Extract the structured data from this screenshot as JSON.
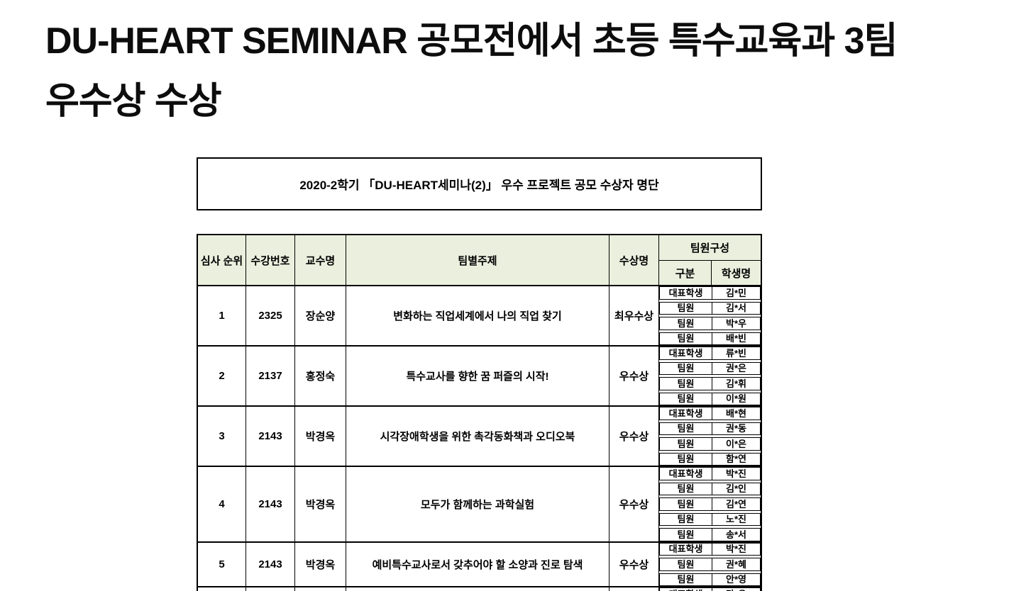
{
  "title": {
    "line1": "DU-HEART SEMINAR 공모전에서 초등 특수교육과 3팀",
    "line2": "우수상 수상"
  },
  "table": {
    "caption": "2020-2학기 「DU-HEART세미나(2)」 우수 프로젝트 공모 수상자 명단",
    "headers": {
      "rank": "심사 순위",
      "course_no": "수강번호",
      "professor": "교수명",
      "topic": "팀별주제",
      "award": "수상명",
      "team": "팀원구성",
      "member_role": "구분",
      "member_name": "학생명"
    },
    "colors": {
      "header_bg": "#ebefde",
      "border": "#000000"
    },
    "rows": [
      {
        "rank": "1",
        "course_no": "2325",
        "professor": "장순양",
        "topic": "변화하는 직업세계에서 나의 직업 찾기",
        "award": "최우수상",
        "members": [
          {
            "role": "대표학생",
            "name": "김*민"
          },
          {
            "role": "팀원",
            "name": "김*서"
          },
          {
            "role": "팀원",
            "name": "박*우"
          },
          {
            "role": "팀원",
            "name": "배*빈"
          }
        ]
      },
      {
        "rank": "2",
        "course_no": "2137",
        "professor": "홍정숙",
        "topic": "특수교사를 향한 꿈 퍼즐의 시작!",
        "award": "우수상",
        "members": [
          {
            "role": "대표학생",
            "name": "류*빈"
          },
          {
            "role": "팀원",
            "name": "권*은"
          },
          {
            "role": "팀원",
            "name": "김*휘"
          },
          {
            "role": "팀원",
            "name": "이*원"
          }
        ]
      },
      {
        "rank": "3",
        "course_no": "2143",
        "professor": "박경옥",
        "topic": "시각장애학생을 위한 촉각동화책과 오디오북",
        "award": "우수상",
        "members": [
          {
            "role": "대표학생",
            "name": "배*현"
          },
          {
            "role": "팀원",
            "name": "권*동"
          },
          {
            "role": "팀원",
            "name": "이*은"
          },
          {
            "role": "팀원",
            "name": "함*연"
          }
        ]
      },
      {
        "rank": "4",
        "course_no": "2143",
        "professor": "박경옥",
        "topic": "모두가 함께하는 과학실험",
        "award": "우수상",
        "members": [
          {
            "role": "대표학생",
            "name": "박*진"
          },
          {
            "role": "팀원",
            "name": "김*인"
          },
          {
            "role": "팀원",
            "name": "김*연"
          },
          {
            "role": "팀원",
            "name": "노*진"
          },
          {
            "role": "팀원",
            "name": "송*서"
          }
        ]
      },
      {
        "rank": "5",
        "course_no": "2143",
        "professor": "박경옥",
        "topic": "예비특수교사로서 갖추어야 할 소양과 진로 탐색",
        "award": "우수상",
        "members": [
          {
            "role": "대표학생",
            "name": "박*진"
          },
          {
            "role": "팀원",
            "name": "권*혜"
          },
          {
            "role": "팀원",
            "name": "안*영"
          }
        ]
      },
      {
        "rank": "",
        "course_no": "",
        "professor": "",
        "topic": "",
        "award": "",
        "partial": true,
        "members": [
          {
            "role": "대표학생",
            "name": "강*유"
          }
        ]
      }
    ]
  }
}
